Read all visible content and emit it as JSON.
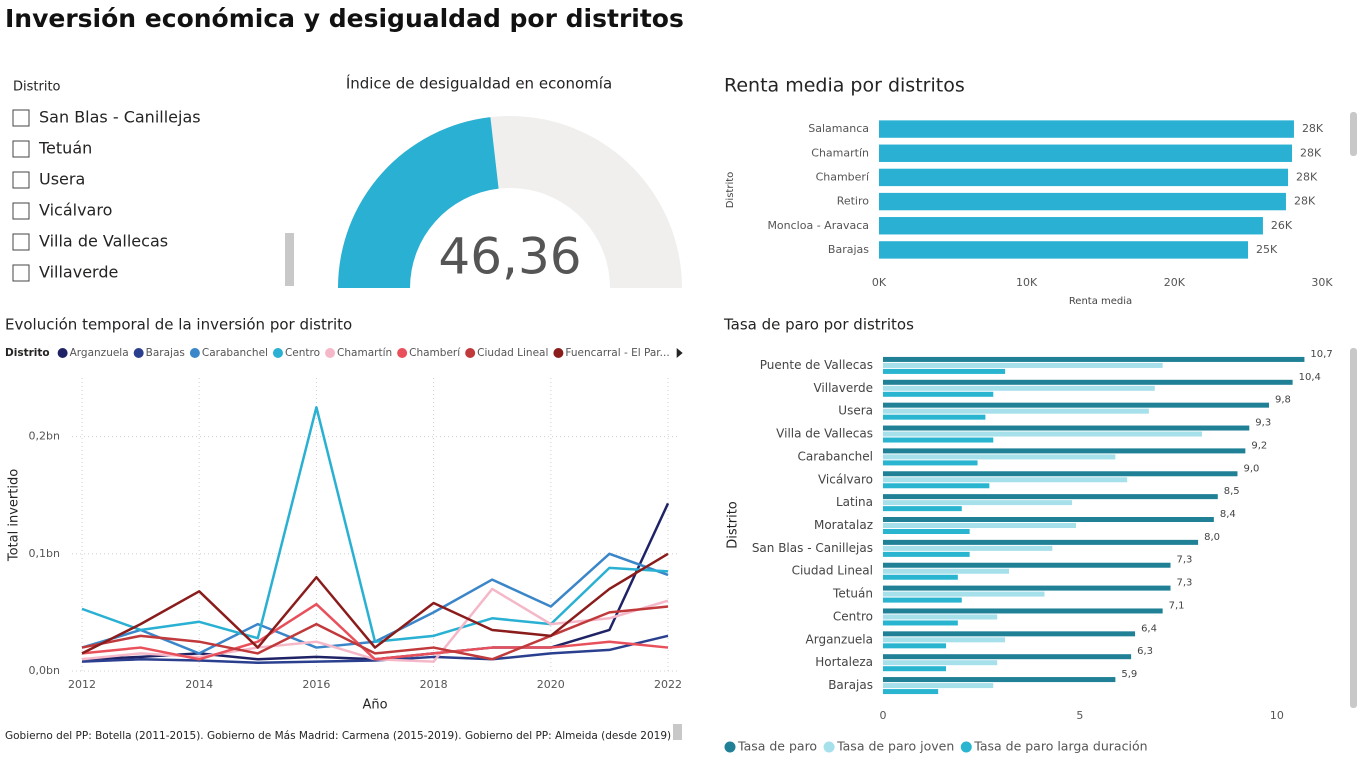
{
  "title": "Inversión económica y desigualdad por distritos",
  "slicer": {
    "label": "Distrito",
    "items": [
      "San Blas - Canillejas",
      "Tetuán",
      "Usera",
      "Vicálvaro",
      "Villa de Vallecas",
      "Villaverde"
    ]
  },
  "footnote": "Gobierno del PP: Botella (2011-2015). Gobierno de Más Madrid: Carmena (2015-2019). Gobierno del PP: Almeida (desde 2019)",
  "chart_data": [
    {
      "type": "gauge",
      "title": "Índice de desigualdad en economía",
      "values": [
        46.36
      ],
      "value_labels": [
        "46,36"
      ],
      "ylim": [
        0,
        100
      ],
      "color": "#29b0d2",
      "track_color": "#f0efee"
    },
    {
      "type": "hbar",
      "title": "Renta media por distritos",
      "x_label": "Renta media",
      "y_label": "Distrito",
      "categories": [
        "Salamanca",
        "Chamartín",
        "Chamberí",
        "Retiro",
        "Moncloa - Aravaca",
        "Barajas"
      ],
      "values": [
        28100,
        27970,
        27700,
        27560,
        26000,
        24990
      ],
      "value_labels": [
        "28K",
        "28K",
        "28K",
        "28K",
        "26K",
        "25K"
      ],
      "color": "#29b0d2",
      "xlim": [
        0,
        30000
      ],
      "xticks": [
        {
          "value": 0,
          "label": "0K"
        },
        {
          "value": 10000,
          "label": "10K"
        },
        {
          "value": 20000,
          "label": "20K"
        },
        {
          "value": 30000,
          "label": "30K"
        }
      ]
    },
    {
      "type": "line",
      "title": "Evolución temporal de la inversión por distrito",
      "legend_title": "Distrito",
      "x_label": "Año",
      "y_label": "Total invertido",
      "grid": true,
      "x": [
        2012,
        2013,
        2014,
        2015,
        2016,
        2017,
        2018,
        2019,
        2020,
        2021,
        2022
      ],
      "xlim": [
        2012,
        2022
      ],
      "xticks": [
        2012,
        2014,
        2016,
        2018,
        2020,
        2022
      ],
      "ylim": [
        0,
        250000000
      ],
      "yticks": [
        {
          "value": 0,
          "label": "0,0bn"
        },
        {
          "value": 100000000,
          "label": "0,1bn"
        },
        {
          "value": 200000000,
          "label": "0,2bn"
        }
      ],
      "series": [
        {
          "name": "Arganzuela",
          "color": "#1f2366",
          "values": [
            10000000,
            12000000,
            15000000,
            10000000,
            12000000,
            10000000,
            15000000,
            20000000,
            20000000,
            35000000,
            143000000
          ]
        },
        {
          "name": "Barajas",
          "color": "#2b3f8f",
          "values": [
            8000000,
            10000000,
            9000000,
            7000000,
            8000000,
            9000000,
            12000000,
            10000000,
            15000000,
            18000000,
            30000000
          ]
        },
        {
          "name": "Carabanchel",
          "color": "#3a86c8",
          "values": [
            20000000,
            35000000,
            15000000,
            40000000,
            20000000,
            25000000,
            50000000,
            78000000,
            55000000,
            100000000,
            82000000
          ]
        },
        {
          "name": "Centro",
          "color": "#29b0d2",
          "values": [
            53000000,
            35000000,
            42000000,
            28000000,
            225000000,
            25000000,
            30000000,
            45000000,
            40000000,
            88000000,
            85000000
          ]
        },
        {
          "name": "Chamartín",
          "color": "#f5b8c8",
          "values": [
            10000000,
            15000000,
            12000000,
            20000000,
            25000000,
            10000000,
            8000000,
            70000000,
            40000000,
            45000000,
            60000000
          ]
        },
        {
          "name": "Chamberí",
          "color": "#e8505b",
          "values": [
            15000000,
            20000000,
            10000000,
            25000000,
            57000000,
            10000000,
            15000000,
            20000000,
            20000000,
            25000000,
            20000000
          ]
        },
        {
          "name": "Ciudad Lineal",
          "color": "#c0393b",
          "values": [
            20000000,
            30000000,
            25000000,
            15000000,
            40000000,
            15000000,
            20000000,
            10000000,
            30000000,
            50000000,
            55000000
          ]
        },
        {
          "name": "Fuencarral - El Par...",
          "color": "#8a1c1c",
          "values": [
            15000000,
            40000000,
            68000000,
            20000000,
            80000000,
            20000000,
            58000000,
            35000000,
            30000000,
            70000000,
            100000000
          ]
        }
      ]
    },
    {
      "type": "grouped_hbar",
      "title": "Tasa de paro por distritos",
      "y_label": "Distrito",
      "categories": [
        "Puente de Vallecas",
        "Villaverde",
        "Usera",
        "Villa de Vallecas",
        "Carabanchel",
        "Vicálvaro",
        "Latina",
        "Moratalaz",
        "San Blas - Canillejas",
        "Ciudad Lineal",
        "Tetuán",
        "Centro",
        "Arganzuela",
        "Hortaleza",
        "Barajas"
      ],
      "xlim": [
        0,
        11.4
      ],
      "xticks": [
        0,
        5,
        10
      ],
      "series": [
        {
          "name": "Tasa de paro",
          "color": "#1f8096",
          "values": [
            10.7,
            10.4,
            9.8,
            9.3,
            9.2,
            9.0,
            8.5,
            8.4,
            8.0,
            7.3,
            7.3,
            7.1,
            6.4,
            6.3,
            5.9
          ],
          "value_labels": [
            "10,7",
            "10,4",
            "9,8",
            "9,3",
            "9,2",
            "9,0",
            "8,5",
            "8,4",
            "8,0",
            "7,3",
            "7,3",
            "7,1",
            "6,4",
            "6,3",
            "5,9"
          ]
        },
        {
          "name": "Tasa de paro joven",
          "color": "#a6e0ea",
          "values": [
            7.1,
            6.9,
            6.75,
            8.1,
            5.9,
            6.2,
            4.8,
            4.9,
            4.3,
            3.2,
            4.1,
            2.9,
            3.1,
            2.9,
            2.8
          ]
        },
        {
          "name": "Tasa de paro larga duración",
          "color": "#29b5d0",
          "values": [
            3.1,
            2.8,
            2.6,
            2.8,
            2.4,
            2.7,
            2.0,
            2.2,
            2.2,
            1.9,
            2.0,
            1.9,
            1.6,
            1.6,
            1.4
          ]
        }
      ]
    }
  ]
}
